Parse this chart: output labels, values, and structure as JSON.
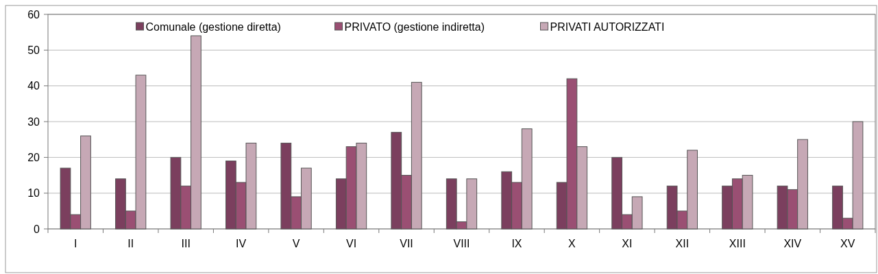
{
  "chart_data": {
    "type": "bar",
    "categories": [
      "I",
      "II",
      "III",
      "IV",
      "V",
      "VI",
      "VII",
      "VIII",
      "IX",
      "X",
      "XI",
      "XII",
      "XIII",
      "XIV",
      "XV"
    ],
    "series": [
      {
        "name": "Comunale (gestione diretta)",
        "color": "#7b3f5e",
        "values": [
          17,
          14,
          20,
          19,
          24,
          14,
          27,
          14,
          16,
          13,
          20,
          12,
          12,
          12,
          12
        ]
      },
      {
        "name": "PRIVATO (gestione indiretta)",
        "color": "#9a4f73",
        "values": [
          4,
          5,
          12,
          13,
          9,
          23,
          15,
          2,
          13,
          42,
          4,
          5,
          14,
          11,
          3
        ]
      },
      {
        "name": "PRIVATI AUTORIZZATI",
        "color": "#c6a8b5",
        "values": [
          26,
          43,
          54,
          24,
          17,
          24,
          41,
          14,
          28,
          23,
          9,
          22,
          15,
          25,
          30
        ]
      }
    ],
    "ylim": [
      0,
      60
    ],
    "yticks": [
      0,
      10,
      20,
      30,
      40,
      50,
      60
    ],
    "grid": "y",
    "legend": "top"
  }
}
